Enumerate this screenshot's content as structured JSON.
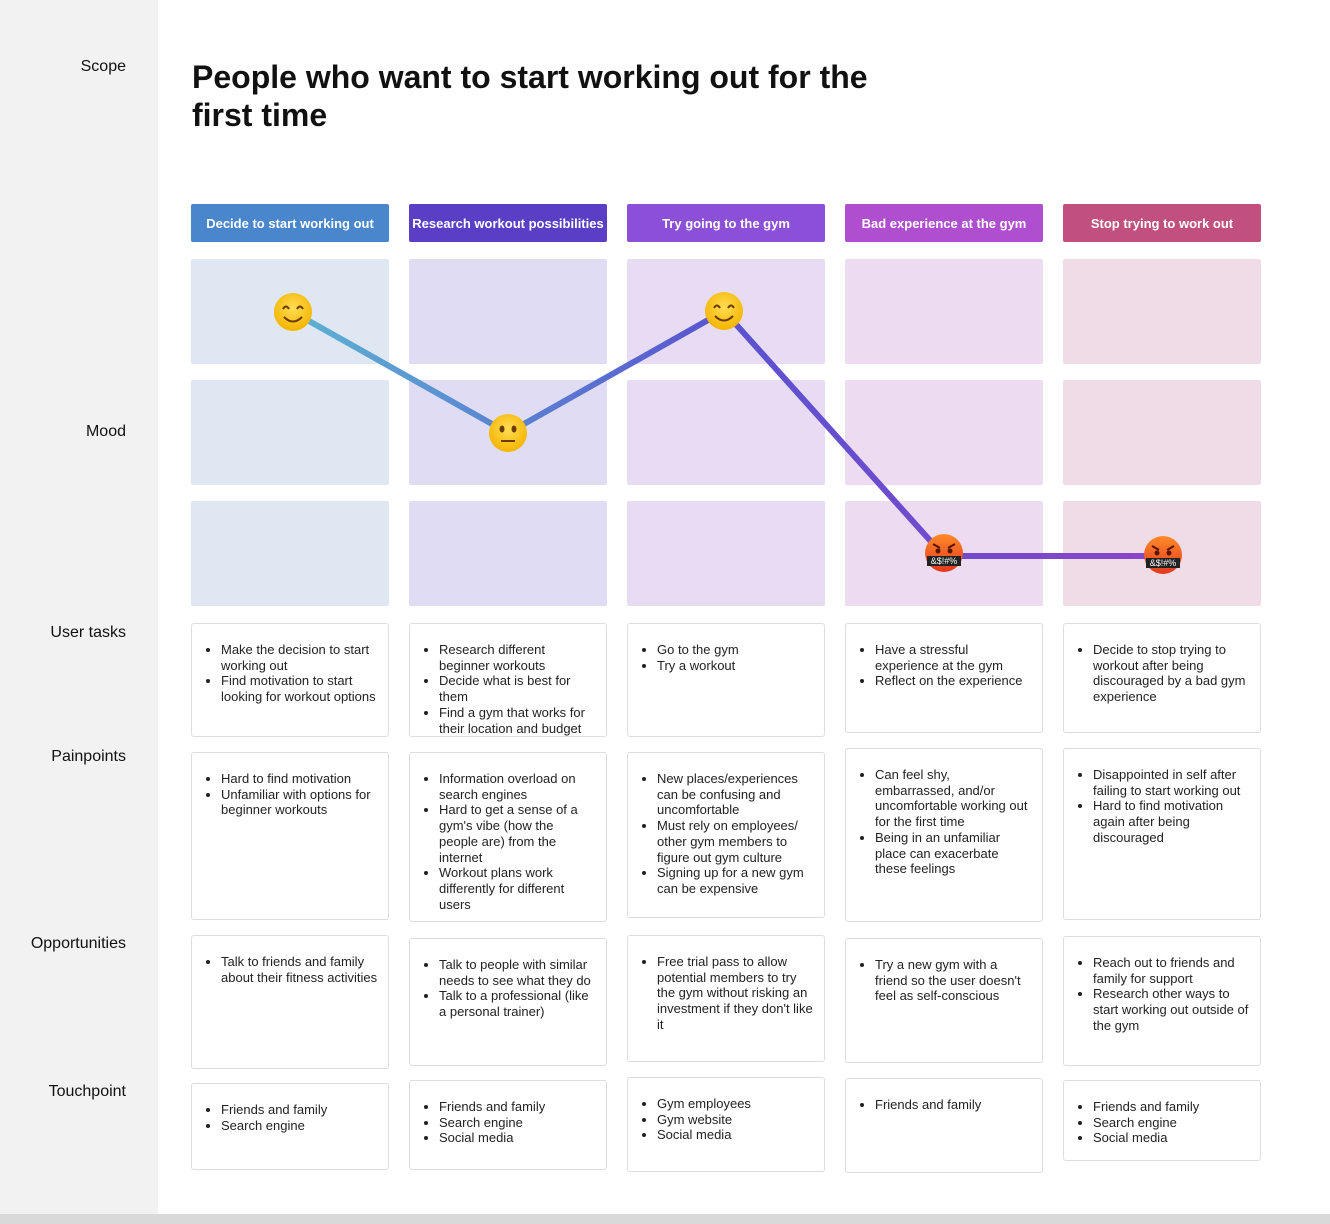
{
  "scope_label": "Scope",
  "title": "People who want to start working out for the first time",
  "row_labels": {
    "mood": "Mood",
    "user_tasks": "User tasks",
    "painpoints": "Painpoints",
    "opportunities": "Opportunities",
    "touchpoints": "Touchpoint"
  },
  "angry_label": "&$!#%",
  "stages": [
    {
      "name": "Decide to start working out",
      "user_tasks": [
        "Make the decision to start working out",
        "Find motivation to start looking for workout options"
      ],
      "painpoints": [
        "Hard to find motivation",
        "Unfamiliar with options for beginner workouts"
      ],
      "opportunities": [
        "Talk to friends and family about their fitness activities"
      ],
      "touchpoints": [
        "Friends and family",
        "Search engine"
      ]
    },
    {
      "name": "Research workout possibilities",
      "user_tasks": [
        "Research different beginner workouts",
        "Decide what is best for them",
        "Find a gym that works for their location and budget"
      ],
      "painpoints": [
        "Information overload on search engines",
        "Hard to get a sense of a gym's vibe (how the people are) from the internet",
        "Workout plans work differently for different users"
      ],
      "opportunities": [
        "Talk to people with similar needs to see what they do",
        "Talk to a professional (like a personal trainer)"
      ],
      "touchpoints": [
        "Friends and family",
        "Search engine",
        "Social media"
      ]
    },
    {
      "name": "Try going to the gym",
      "user_tasks": [
        "Go to the gym",
        "Try a workout"
      ],
      "painpoints": [
        "New places/experiences can be confusing and uncomfortable",
        "Must rely on employees/ other gym members to figure out gym culture",
        "Signing up for a new gym can be expensive"
      ],
      "opportunities": [
        "Free trial pass to allow potential members to try the gym without risking an investment if they don't like it"
      ],
      "touchpoints": [
        "Gym employees",
        "Gym website",
        "Social media"
      ]
    },
    {
      "name": "Bad experience at the gym",
      "user_tasks": [
        "Have a stressful experience at the gym",
        "Reflect on the experience"
      ],
      "painpoints": [
        "Can feel shy, embarrassed, and/or uncomfortable working out for the first time",
        "Being in an unfamiliar place can exacerbate these feelings"
      ],
      "opportunities": [
        "Try a new gym with a friend so the user doesn't feel as self-conscious"
      ],
      "touchpoints": [
        "Friends and family"
      ]
    },
    {
      "name": "Stop trying to work out",
      "user_tasks": [
        "Decide to stop trying to workout after being discouraged by a bad gym experience"
      ],
      "painpoints": [
        "Disappointed in self after failing to start working out",
        "Hard to find motivation again after being discouraged"
      ],
      "opportunities": [
        "Reach out to friends and family for support",
        "Research other ways to start working out outside of the gym"
      ],
      "touchpoints": [
        "Friends and family",
        "Search engine",
        "Social media"
      ]
    }
  ]
}
